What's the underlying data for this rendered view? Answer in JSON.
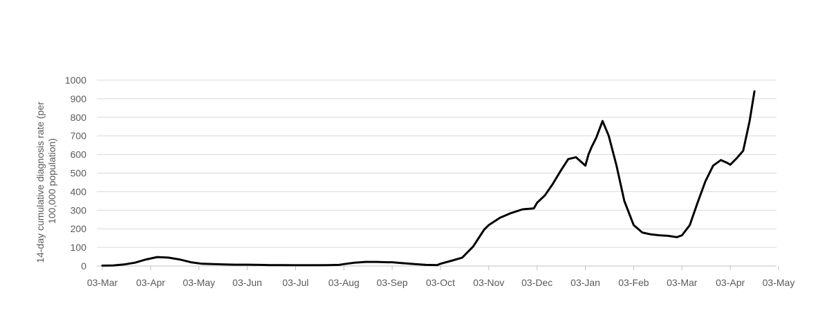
{
  "chart_data": {
    "type": "line",
    "title": "",
    "xlabel": "",
    "ylabel_lines": [
      "14-day cumulative diagnosis rate (per",
      "100,000 population)"
    ],
    "ylim": [
      0,
      1000
    ],
    "y_ticks": [
      0,
      100,
      200,
      300,
      400,
      500,
      600,
      700,
      800,
      900,
      1000
    ],
    "x_ticks": [
      "03-Mar",
      "03-Apr",
      "03-May",
      "03-Jun",
      "03-Jul",
      "03-Aug",
      "03-Sep",
      "03-Oct",
      "03-Nov",
      "03-Dec",
      "03-Jan",
      "03-Feb",
      "03-Mar",
      "03-Apr",
      "03-May"
    ],
    "grid": true,
    "legend": "none",
    "line_color": "#000000",
    "series": [
      {
        "x": [
          "2020-03-03",
          "2020-03-10",
          "2020-03-17",
          "2020-03-24",
          "2020-03-31",
          "2020-04-07",
          "2020-04-14",
          "2020-04-21",
          "2020-04-28",
          "2020-05-05",
          "2020-05-12",
          "2020-05-19",
          "2020-05-26",
          "2020-06-03",
          "2020-06-10",
          "2020-06-17",
          "2020-06-24",
          "2020-07-03",
          "2020-07-10",
          "2020-07-17",
          "2020-07-24",
          "2020-07-31",
          "2020-08-03",
          "2020-08-10",
          "2020-08-17",
          "2020-08-24",
          "2020-08-31",
          "2020-09-03",
          "2020-09-10",
          "2020-09-17",
          "2020-09-24",
          "2020-10-01",
          "2020-10-03",
          "2020-10-10",
          "2020-10-17",
          "2020-10-24",
          "2020-10-31",
          "2020-11-03",
          "2020-11-10",
          "2020-11-17",
          "2020-11-24",
          "2020-12-01",
          "2020-12-03",
          "2020-12-08",
          "2020-12-13",
          "2020-12-18",
          "2020-12-23",
          "2020-12-28",
          "2021-01-01",
          "2021-01-03",
          "2021-01-05",
          "2021-01-07",
          "2021-01-10",
          "2021-01-14",
          "2021-01-18",
          "2021-01-23",
          "2021-01-28",
          "2021-02-03",
          "2021-02-08",
          "2021-02-13",
          "2021-02-18",
          "2021-02-23",
          "2021-02-28",
          "2021-03-03",
          "2021-03-08",
          "2021-03-13",
          "2021-03-18",
          "2021-03-23",
          "2021-03-28",
          "2021-04-01",
          "2021-04-03",
          "2021-04-07",
          "2021-04-11",
          "2021-04-15",
          "2021-04-18"
        ],
        "y": [
          2,
          3,
          8,
          18,
          35,
          48,
          45,
          35,
          20,
          12,
          10,
          8,
          7,
          7,
          6,
          5,
          5,
          4,
          4,
          4,
          5,
          6,
          10,
          18,
          22,
          22,
          20,
          20,
          15,
          10,
          6,
          5,
          12,
          28,
          45,
          105,
          195,
          220,
          260,
          285,
          305,
          310,
          340,
          380,
          440,
          510,
          575,
          585,
          555,
          540,
          600,
          640,
          690,
          780,
          700,
          540,
          350,
          220,
          180,
          170,
          165,
          162,
          155,
          165,
          220,
          340,
          455,
          540,
          570,
          555,
          545,
          580,
          620,
          780,
          940
        ]
      }
    ]
  }
}
